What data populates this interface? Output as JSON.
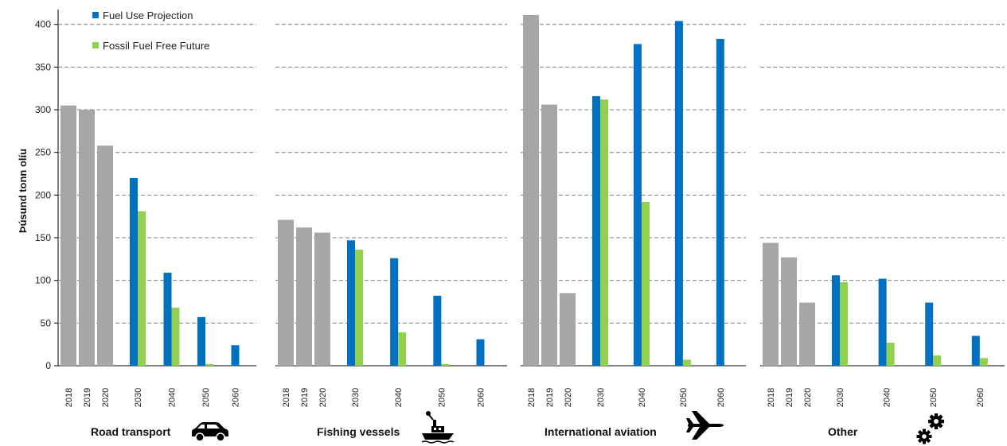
{
  "chart_data": {
    "type": "bar",
    "ylabel": "Þúsund tonn olíu",
    "ylim": [
      0,
      410
    ],
    "yticks": [
      0,
      50,
      100,
      150,
      200,
      250,
      300,
      350,
      400
    ],
    "grid": true,
    "legend_position": "top-left",
    "series": [
      {
        "name": "Fuel Use Projection",
        "color": "#0070c0"
      },
      {
        "name": "Fossil Fuel Free Future",
        "color": "#92d050"
      }
    ],
    "historical_color": "#a6a6a6",
    "groups": [
      {
        "label": "Road transport",
        "icon": "car-icon",
        "historical": [
          {
            "year": "2018",
            "value": 305
          },
          {
            "year": "2019",
            "value": 300
          },
          {
            "year": "2020",
            "value": 258
          }
        ],
        "projections": [
          {
            "year": "2030",
            "fuel_use": 220,
            "fossil_free": 181
          },
          {
            "year": "2040",
            "fuel_use": 109,
            "fossil_free": 68
          },
          {
            "year": "2050",
            "fuel_use": 57,
            "fossil_free": 2
          },
          {
            "year": "2060",
            "fuel_use": 24,
            "fossil_free": 0
          }
        ]
      },
      {
        "label": "Fishing vessels",
        "icon": "ship-icon",
        "historical": [
          {
            "year": "2018",
            "value": 171
          },
          {
            "year": "2019",
            "value": 162
          },
          {
            "year": "2020",
            "value": 156
          }
        ],
        "projections": [
          {
            "year": "2030",
            "fuel_use": 147,
            "fossil_free": 136
          },
          {
            "year": "2040",
            "fuel_use": 126,
            "fossil_free": 39
          },
          {
            "year": "2050",
            "fuel_use": 82,
            "fossil_free": 2
          },
          {
            "year": "2060",
            "fuel_use": 31,
            "fossil_free": 0
          }
        ]
      },
      {
        "label": "International aviation",
        "icon": "airplane-icon",
        "historical": [
          {
            "year": "2018",
            "value": 411
          },
          {
            "year": "2019",
            "value": 306
          },
          {
            "year": "2020",
            "value": 85
          }
        ],
        "projections": [
          {
            "year": "2030",
            "fuel_use": 316,
            "fossil_free": 312
          },
          {
            "year": "2040",
            "fuel_use": 377,
            "fossil_free": 192
          },
          {
            "year": "2050",
            "fuel_use": 404,
            "fossil_free": 7
          },
          {
            "year": "2060",
            "fuel_use": 383,
            "fossil_free": 0
          }
        ]
      },
      {
        "label": "Other",
        "icon": "gears-icon",
        "historical": [
          {
            "year": "2018",
            "value": 144
          },
          {
            "year": "2019",
            "value": 127
          },
          {
            "year": "2020",
            "value": 74
          }
        ],
        "projections": [
          {
            "year": "2030",
            "fuel_use": 106,
            "fossil_free": 98
          },
          {
            "year": "2040",
            "fuel_use": 102,
            "fossil_free": 27
          },
          {
            "year": "2050",
            "fuel_use": 74,
            "fossil_free": 12
          },
          {
            "year": "2060",
            "fuel_use": 35,
            "fossil_free": 9
          }
        ]
      }
    ]
  }
}
